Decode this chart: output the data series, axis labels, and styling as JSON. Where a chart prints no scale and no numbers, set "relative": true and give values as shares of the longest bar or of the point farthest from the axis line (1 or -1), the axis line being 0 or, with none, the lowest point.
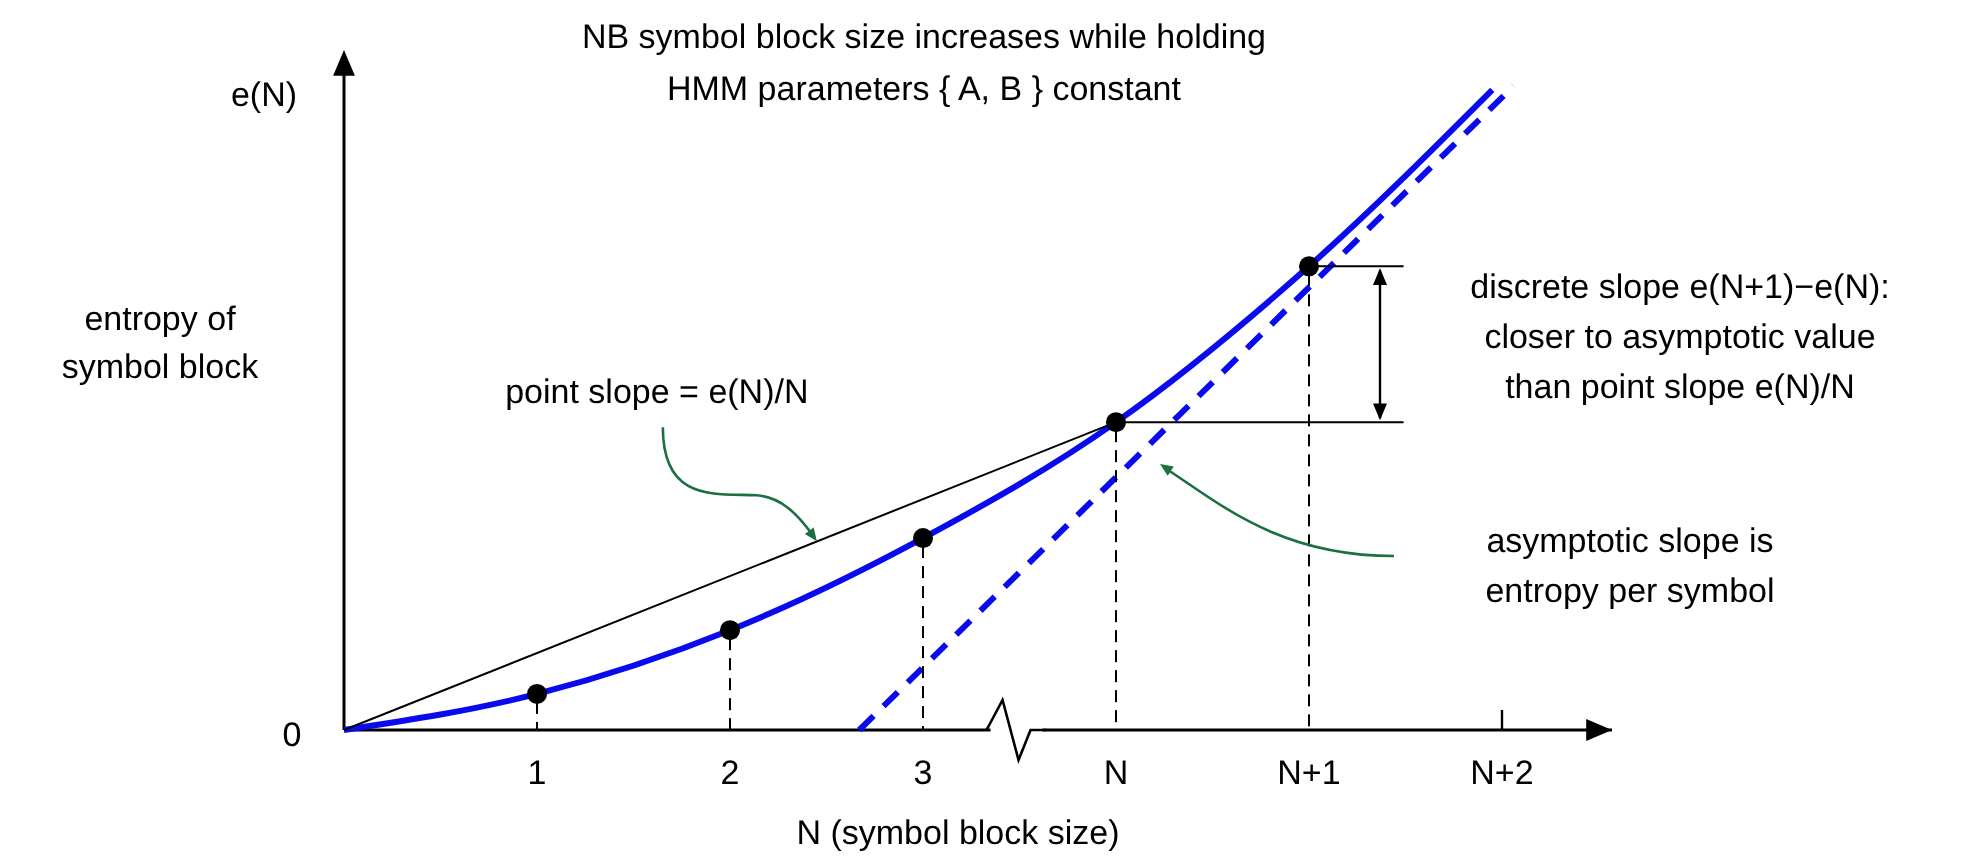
{
  "chart_data": {
    "type": "line",
    "relative": true,
    "title": "NB symbol block size increases while holding HMM parameters { A, B } constant",
    "xlabel": "N (symbol block size)",
    "ylabel": "entropy of symbol block",
    "tick_labels": "x",
    "xlim": [
      0,
      6.57
    ],
    "xticks": [
      {
        "value": 1,
        "label": "1"
      },
      {
        "value": 2,
        "label": "2"
      },
      {
        "value": 3,
        "label": "3"
      },
      {
        "value": 4,
        "label": "N"
      },
      {
        "value": 5,
        "label": "N+1"
      },
      {
        "value": 6,
        "label": "N+2"
      }
    ],
    "series": [
      {
        "color": "#0a0aee",
        "line_style": "solid",
        "x": [
          0,
          1,
          2,
          3,
          4,
          5,
          5.95
        ],
        "values": [
          0,
          0.056,
          0.155,
          0.298,
          0.478,
          0.72,
          0.994
        ]
      },
      {
        "color": "#0a0aee",
        "line_style": "dashed",
        "x": [
          2.67,
          6.06
        ],
        "values": [
          0,
          1
        ]
      },
      {
        "color": "#000000",
        "line_style": "solid",
        "x": [
          0,
          4
        ],
        "values": [
          0,
          0.478
        ]
      },
      {
        "color": "#000000",
        "line_style": "solid",
        "x": [
          4,
          5.49
        ],
        "values": [
          0.478,
          0.478
        ]
      },
      {
        "color": "#000000",
        "line_style": "solid",
        "x": [
          5,
          5.49
        ],
        "values": [
          0.72,
          0.72
        ]
      },
      {
        "type": "scatter",
        "color": "#000000",
        "marker": "circle",
        "x": [
          1,
          2,
          3,
          4,
          5
        ],
        "values": [
          0.056,
          0.155,
          0.298,
          0.478,
          0.72
        ]
      }
    ],
    "annotations": [
      "e(N)",
      "0",
      {
        "text": "point slope = e(N)/N",
        "x": 2.45,
        "y": 0.29
      },
      "discrete slope e(N+1)−e(N): closer to asymptotic value than point slope e(N)/N",
      "asymptotic slope is entropy per symbol"
    ]
  }
}
